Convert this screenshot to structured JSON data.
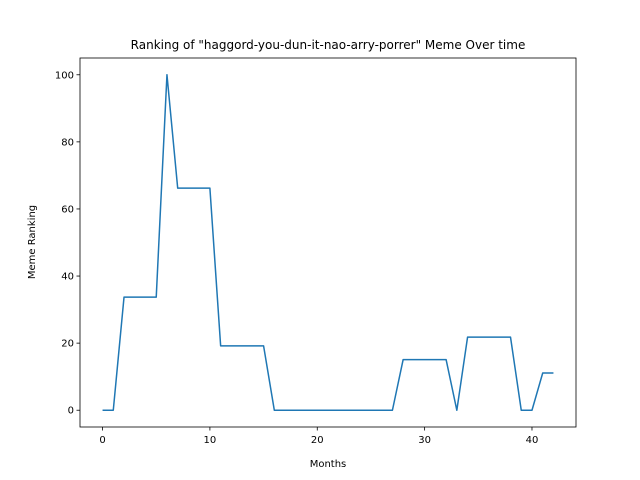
{
  "chart_data": {
    "type": "line",
    "title": "Ranking of \"haggord-you-dun-it-nao-arry-porrer\" Meme Over time",
    "xlabel": "Months",
    "ylabel": "Meme Ranking",
    "xlim": [
      -2.1,
      44.1
    ],
    "ylim": [
      -5,
      105
    ],
    "xticks": [
      0,
      10,
      20,
      30,
      40
    ],
    "yticks": [
      0,
      20,
      40,
      60,
      80,
      100
    ],
    "grid": false,
    "legend": "none",
    "series": [
      {
        "color": "#1f77b4",
        "x": [
          0,
          1,
          2,
          3,
          4,
          5,
          6,
          7,
          8,
          9,
          10,
          11,
          12,
          13,
          14,
          15,
          16,
          17,
          18,
          19,
          20,
          21,
          22,
          23,
          24,
          25,
          26,
          27,
          28,
          29,
          30,
          31,
          32,
          33,
          34,
          35,
          36,
          37,
          38,
          39,
          40,
          41,
          42
        ],
        "values": [
          0,
          0,
          33.7,
          33.7,
          33.7,
          33.7,
          100,
          66.2,
          66.2,
          66.2,
          66.2,
          19.2,
          19.2,
          19.2,
          19.2,
          19.2,
          0,
          0,
          0,
          0,
          0,
          0,
          0,
          0,
          0,
          0,
          0,
          0,
          15.1,
          15.1,
          15.1,
          15.1,
          15.1,
          0,
          21.8,
          21.8,
          21.8,
          21.8,
          21.8,
          0,
          0,
          11.1,
          11.1
        ]
      }
    ]
  }
}
